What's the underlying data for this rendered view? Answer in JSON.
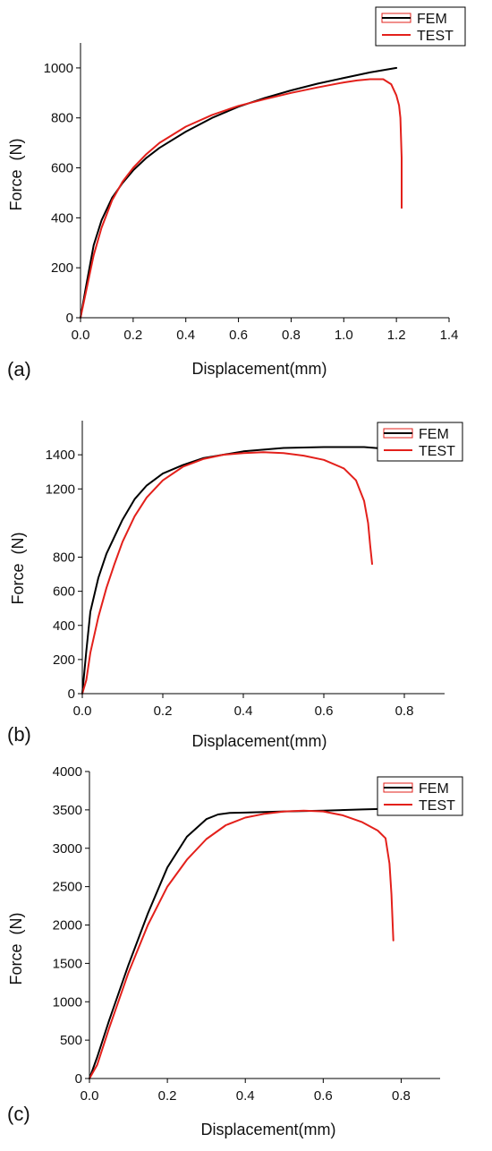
{
  "chart_data": [
    {
      "type": "line",
      "panel_label": "(a)",
      "xlabel": "Displacement(mm)",
      "ylabel": "Force  (N)",
      "xlim": [
        0,
        1.4
      ],
      "ylim": [
        0,
        1100
      ],
      "xticks": [
        0.0,
        0.2,
        0.4,
        0.6,
        0.8,
        1.0,
        1.2,
        1.4
      ],
      "xtick_labels": [
        "0.0",
        "0.2",
        "0.4",
        "0.6",
        "0.8",
        "1.0",
        "1.2",
        "1.4"
      ],
      "yticks": [
        0,
        200,
        400,
        600,
        800,
        1000
      ],
      "ytick_labels": [
        "0",
        "200",
        "400",
        "600",
        "800",
        "1000"
      ],
      "legend": "top-right",
      "grid": false,
      "series": [
        {
          "name": "FEM",
          "color": "#000000",
          "x": [
            0,
            0.02,
            0.05,
            0.08,
            0.12,
            0.16,
            0.2,
            0.25,
            0.3,
            0.4,
            0.5,
            0.6,
            0.7,
            0.8,
            0.9,
            1.0,
            1.1,
            1.2
          ],
          "y": [
            0,
            120,
            290,
            390,
            480,
            540,
            590,
            640,
            680,
            745,
            800,
            845,
            880,
            910,
            937,
            960,
            982,
            1000
          ]
        },
        {
          "name": "TEST",
          "color": "#e3201b",
          "x": [
            0,
            0.02,
            0.05,
            0.08,
            0.12,
            0.16,
            0.2,
            0.25,
            0.3,
            0.4,
            0.5,
            0.6,
            0.7,
            0.8,
            0.9,
            1.0,
            1.05,
            1.1,
            1.15,
            1.18,
            1.2,
            1.21,
            1.215,
            1.22,
            1.22
          ],
          "y": [
            0,
            100,
            250,
            360,
            470,
            545,
            600,
            655,
            700,
            765,
            812,
            848,
            875,
            900,
            922,
            942,
            950,
            955,
            955,
            935,
            890,
            850,
            800,
            640,
            440
          ]
        }
      ]
    },
    {
      "type": "line",
      "panel_label": "(b)",
      "xlabel": "Displacement(mm)",
      "ylabel": "Force  (N)",
      "xlim": [
        0,
        0.9
      ],
      "ylim": [
        0,
        1600
      ],
      "xticks": [
        0.0,
        0.2,
        0.4,
        0.6,
        0.8
      ],
      "xtick_labels": [
        "0.0",
        "0.2",
        "0.4",
        "0.6",
        "0.8"
      ],
      "yticks": [
        0,
        200,
        400,
        600,
        800,
        1200,
        1400
      ],
      "ytick_labels": [
        "0",
        "200",
        "400",
        "600",
        "800",
        "1200",
        "1400"
      ],
      "legend": "top-right",
      "grid": false,
      "series": [
        {
          "name": "FEM",
          "color": "#000000",
          "x": [
            0,
            0.01,
            0.02,
            0.04,
            0.06,
            0.08,
            0.1,
            0.13,
            0.16,
            0.2,
            0.25,
            0.3,
            0.4,
            0.5,
            0.6,
            0.7,
            0.78
          ],
          "y": [
            0,
            250,
            480,
            680,
            820,
            920,
            1020,
            1140,
            1220,
            1290,
            1340,
            1380,
            1420,
            1440,
            1445,
            1445,
            1430
          ]
        },
        {
          "name": "TEST",
          "color": "#e3201b",
          "x": [
            0,
            0.01,
            0.02,
            0.04,
            0.06,
            0.08,
            0.1,
            0.13,
            0.16,
            0.2,
            0.25,
            0.3,
            0.35,
            0.4,
            0.45,
            0.5,
            0.55,
            0.6,
            0.65,
            0.68,
            0.7,
            0.71,
            0.715,
            0.72
          ],
          "y": [
            0,
            80,
            240,
            450,
            620,
            760,
            890,
            1040,
            1150,
            1250,
            1330,
            1375,
            1400,
            1410,
            1415,
            1410,
            1395,
            1370,
            1320,
            1250,
            1130,
            1000,
            870,
            760
          ]
        }
      ]
    },
    {
      "type": "line",
      "panel_label": "(c)",
      "xlabel": "Displacement(mm)",
      "ylabel": "Force  (N)",
      "xlim": [
        0,
        0.9
      ],
      "ylim": [
        0,
        4000
      ],
      "xticks": [
        0.0,
        0.2,
        0.4,
        0.6,
        0.8
      ],
      "xtick_labels": [
        "0.0",
        "0.2",
        "0.4",
        "0.6",
        "0.8"
      ],
      "yticks": [
        0,
        500,
        1000,
        1500,
        2000,
        2500,
        3000,
        3500,
        4000
      ],
      "ytick_labels": [
        "0",
        "500",
        "1000",
        "1500",
        "2000",
        "2500",
        "3000",
        "3500",
        "4000"
      ],
      "legend": "top-right",
      "grid": false,
      "series": [
        {
          "name": "FEM",
          "color": "#000000",
          "x": [
            0,
            0.02,
            0.05,
            0.1,
            0.15,
            0.2,
            0.25,
            0.3,
            0.33,
            0.36,
            0.4,
            0.5,
            0.6,
            0.7,
            0.8
          ],
          "y": [
            0,
            280,
            750,
            1480,
            2150,
            2750,
            3150,
            3380,
            3440,
            3460,
            3465,
            3480,
            3490,
            3505,
            3520
          ]
        },
        {
          "name": "TEST",
          "color": "#e3201b",
          "x": [
            0,
            0.02,
            0.05,
            0.1,
            0.15,
            0.2,
            0.25,
            0.3,
            0.35,
            0.4,
            0.45,
            0.5,
            0.55,
            0.6,
            0.65,
            0.7,
            0.74,
            0.76,
            0.77,
            0.775,
            0.78
          ],
          "y": [
            0,
            180,
            650,
            1380,
            2000,
            2500,
            2850,
            3120,
            3300,
            3400,
            3450,
            3480,
            3490,
            3480,
            3430,
            3340,
            3230,
            3130,
            2800,
            2400,
            1800
          ]
        }
      ]
    }
  ]
}
